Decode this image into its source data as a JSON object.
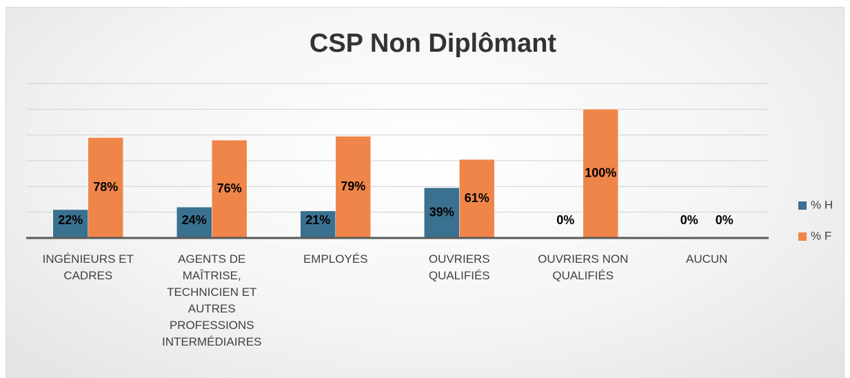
{
  "chart_data": {
    "type": "bar",
    "title": "CSP Non Diplômant",
    "categories": [
      "INGÉNIEURS ET CADRES",
      "AGENTS DE MAÎTRISE, TECHNICIEN ET AUTRES PROFESSIONS INTERMÉDIAIRES",
      "EMPLOYÉS",
      "OUVRIERS QUALIFIÉS",
      "OUVRIERS NON QUALIFIÉS",
      "AUCUN"
    ],
    "series": [
      {
        "name": "% H",
        "color": "#3a7190",
        "values": [
          22,
          24,
          21,
          39,
          0,
          0
        ],
        "value_labels": [
          "22%",
          "24%",
          "21%",
          "39%",
          "0%",
          "0%"
        ]
      },
      {
        "name": "% F",
        "color": "#f0854a",
        "values": [
          78,
          76,
          79,
          61,
          100,
          0
        ],
        "value_labels": [
          "78%",
          "76%",
          "79%",
          "61%",
          "100%",
          "0%"
        ]
      }
    ],
    "ylim": [
      0,
      120
    ],
    "yticks": [
      0,
      20,
      40,
      60,
      80,
      100,
      120
    ],
    "grid": true,
    "legend": "right"
  }
}
